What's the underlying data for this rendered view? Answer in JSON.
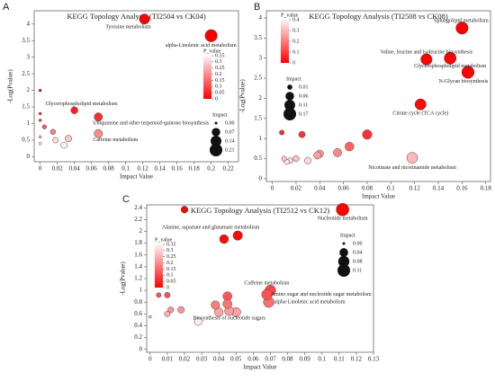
{
  "chart_data": [
    {
      "type": "scatter",
      "panel_label": "A",
      "title": "KEGG Topology Analysis (TI2504 vs CK04)",
      "x_label": "Impact Value",
      "y_label": "-Log(Pvalue)",
      "xlim": [
        -0.007,
        0.232
      ],
      "ylim": [
        -0.15,
        4.4
      ],
      "xticks": [
        0,
        0.02,
        0.04,
        0.06,
        0.08,
        0.1,
        0.12,
        0.14,
        0.16,
        0.18,
        0.2,
        0.22
      ],
      "yticks": [
        0,
        0.5,
        1,
        1.5,
        2,
        2.5,
        3,
        3.5,
        4
      ],
      "x": [
        0.122,
        0.2,
        0.04,
        0.068,
        0.068,
        0,
        0,
        0,
        0.005,
        0,
        0.015,
        0.018,
        0.033,
        0.028,
        0
      ],
      "y": [
        4.15,
        3.65,
        1.4,
        1.2,
        0.7,
        2.0,
        1.3,
        1.1,
        0.9,
        0.6,
        0.75,
        0.5,
        0.55,
        0.35,
        0.4
      ],
      "labels": [
        "Tyrosine metabolism",
        "alpha-Linolenic acid metabolism",
        "Glycerophospholipid metabolism",
        "Ubiquinone and other terpenoid-quinone biosynthesis",
        "Caffeine metabolism",
        null,
        null,
        null,
        null,
        null,
        null,
        null,
        null,
        null,
        null
      ],
      "colors": [
        "#ff0000",
        "#fff4f4"
      ],
      "color_legend": {
        "title": "P_value",
        "ticks": [
          0.35,
          0.3,
          0.25,
          0.2,
          0.15,
          0.1,
          0.05,
          0
        ]
      },
      "size_legend": {
        "title": "Impact",
        "ticks": [
          {
            "value": 0,
            "label": "0.00"
          },
          0.07,
          0.14,
          0.21
        ]
      }
    },
    {
      "type": "scatter",
      "panel_label": "B",
      "title": "KEGG Topology Analysis (TI2508 vs CK08)",
      "x_label": "Impact Value",
      "y_label": "-Log(Pvalue)",
      "xlim": [
        -0.005,
        0.184
      ],
      "ylim": [
        -0.07,
        4.18
      ],
      "xticks": [
        0,
        0.02,
        0.04,
        0.06,
        0.08,
        0.1,
        0.12,
        0.14,
        0.16,
        0.18
      ],
      "yticks": [
        0,
        0.5,
        1,
        1.5,
        2,
        2.5,
        3,
        3.5,
        4
      ],
      "x": [
        0.16,
        0.13,
        0.15,
        0.165,
        0.125,
        0.118,
        0.008,
        0.025,
        0.08,
        0.065,
        0.055,
        0.04,
        0.038,
        0.01,
        0.015,
        0.02,
        0.03,
        0.012
      ],
      "y": [
        3.75,
        2.97,
        3.0,
        2.65,
        1.85,
        0.52,
        1.15,
        1.1,
        1.1,
        0.8,
        0.65,
        0.62,
        0.58,
        0.5,
        0.45,
        0.5,
        0.45,
        0.42
      ],
      "labels": [
        "Sphingolipid metabolism",
        "Valine, leucine and isoleucine biosynthesis",
        "Glycerophospholipid metabolism",
        "N-Glycan biosynthesis",
        "Citrate cycle (TCA cycle)",
        "Nicotinate and nicotinamide metabolism",
        null,
        null,
        null,
        null,
        null,
        null,
        null,
        null,
        null,
        null,
        null,
        null
      ],
      "colors": [
        "#ff0000",
        "#fff4f4"
      ],
      "color_legend": {
        "title": "P_value",
        "ticks": [
          0.4,
          0.3,
          0.2,
          0.1,
          0
        ]
      },
      "size_legend": {
        "title": "Impact",
        "ticks": [
          0.01,
          0.06,
          0.11,
          0.17
        ]
      }
    },
    {
      "type": "scatter",
      "panel_label": "C",
      "title": "KEGG Topology Analysis (TI2512 vs CK12)",
      "x_label": "Impact Value",
      "y_label": "-Log(Pvalue)",
      "xlim": [
        -0.002,
        0.13
      ],
      "ylim": [
        -0.05,
        2.45
      ],
      "xticks": [
        0,
        0.01,
        0.02,
        0.03,
        0.04,
        0.05,
        0.06,
        0.07,
        0.08,
        0.09,
        0.1,
        0.11,
        0.12,
        0.13
      ],
      "yticks": [
        0,
        0.2,
        0.4,
        0.6,
        0.8,
        1,
        1.2,
        1.4,
        1.6,
        1.8,
        2,
        2.2,
        2.4
      ],
      "x": [
        0.112,
        0.051,
        0.07,
        0.068,
        0.069,
        0.046,
        0.043,
        0.02,
        0.005,
        0.01,
        0.045,
        0.045,
        0.038,
        0.04,
        0.05,
        0.012,
        0.018,
        0.01,
        0.028,
        0
      ],
      "y": [
        2.37,
        1.93,
        1.0,
        0.93,
        0.8,
        0.65,
        1.87,
        2.37,
        0.92,
        0.92,
        0.9,
        0.77,
        0.75,
        0.63,
        0.63,
        0.67,
        0.67,
        0.6,
        0.47,
        0.55
      ],
      "labels": [
        "Nucleotide metabolism",
        "Alanine, aspartate and glutamate metabolism",
        "Caffeine metabolism",
        "Amino sugar and nucleotide sugar metabolism",
        "alpha-Linolenic acid metabolism",
        "Biosynthesis of nucleotide sugars",
        null,
        null,
        null,
        null,
        null,
        null,
        null,
        null,
        null,
        null,
        null,
        null,
        null,
        null
      ],
      "colors": [
        "#ff0000",
        "#fff4f4"
      ],
      "color_legend": {
        "title": "P_value",
        "ticks": [
          0.35,
          0.3,
          0.25,
          0.2,
          0.15,
          0.1,
          0.05,
          0
        ]
      },
      "size_legend": {
        "title": "Impact",
        "ticks": [
          {
            "value": 0,
            "label": "0.00"
          },
          0.04,
          0.08,
          0.11
        ]
      }
    }
  ]
}
